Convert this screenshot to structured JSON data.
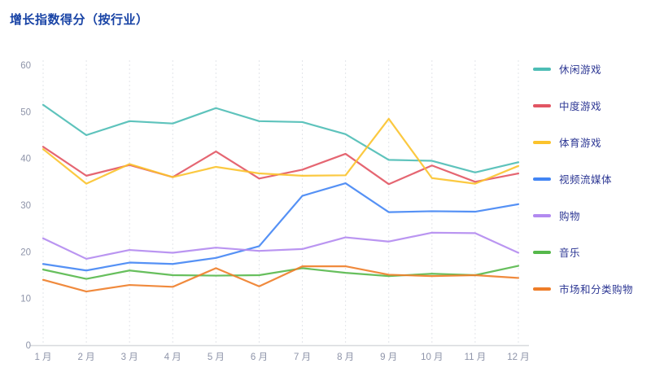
{
  "page": {
    "background": "#ffffff"
  },
  "chart_data": {
    "type": "line",
    "title": "增长指数得分（按行业）",
    "title_color": "#1843a5",
    "xlabel": "",
    "ylabel": "",
    "categories": [
      "1 月",
      "2 月",
      "3 月",
      "4 月",
      "5 月",
      "6 月",
      "7 月",
      "8 月",
      "9 月",
      "10 月",
      "11 月",
      "12 月"
    ],
    "ylim": [
      0,
      60
    ],
    "yticks": [
      0,
      10,
      20,
      30,
      40,
      50,
      60
    ],
    "grid": "vertical-dashed",
    "gridline_color": "#e2e4e9",
    "axis_line_color": "#d8dade",
    "axis_label_color": "#8e94a9",
    "legend_position": "right",
    "legend_text_color": "#2d3794",
    "series": [
      {
        "id": "casual-games",
        "name": "休闲游戏",
        "color": "#4DBDB5",
        "values": [
          51.5,
          45.0,
          48.0,
          47.5,
          50.8,
          48.0,
          47.8,
          45.2,
          39.7,
          39.5,
          37.0,
          39.2
        ]
      },
      {
        "id": "midcore-games",
        "name": "中度游戏",
        "color": "#E25563",
        "values": [
          42.5,
          36.3,
          38.6,
          36.0,
          41.5,
          35.7,
          37.6,
          41.0,
          34.5,
          38.5,
          35.0,
          36.8
        ]
      },
      {
        "id": "sports-games",
        "name": "体育游戏",
        "color": "#FBC32C",
        "values": [
          42.0,
          34.6,
          38.8,
          36.0,
          38.2,
          36.8,
          36.3,
          36.4,
          48.5,
          35.8,
          34.6,
          38.4
        ]
      },
      {
        "id": "video-streaming",
        "name": "视频流媒体",
        "color": "#4285F4",
        "values": [
          17.4,
          16.0,
          17.7,
          17.4,
          18.7,
          21.2,
          32.0,
          34.7,
          28.5,
          28.7,
          28.6,
          30.2
        ]
      },
      {
        "id": "shopping",
        "name": "购物",
        "color": "#B28AF0",
        "values": [
          22.9,
          18.5,
          20.4,
          19.8,
          20.9,
          20.2,
          20.6,
          23.1,
          22.2,
          24.1,
          24.0,
          19.8
        ]
      },
      {
        "id": "music",
        "name": "音乐",
        "color": "#56B84B",
        "values": [
          16.2,
          14.2,
          16.0,
          15.0,
          14.9,
          15.0,
          16.5,
          15.5,
          14.8,
          15.3,
          15.0,
          17.0
        ]
      },
      {
        "id": "marketplace-classified-shopping",
        "name": "市场和分类购物",
        "color": "#EE7D28",
        "values": [
          14.0,
          11.5,
          12.9,
          12.5,
          16.5,
          12.6,
          16.9,
          16.9,
          15.1,
          14.8,
          15.0,
          14.4
        ]
      }
    ]
  }
}
